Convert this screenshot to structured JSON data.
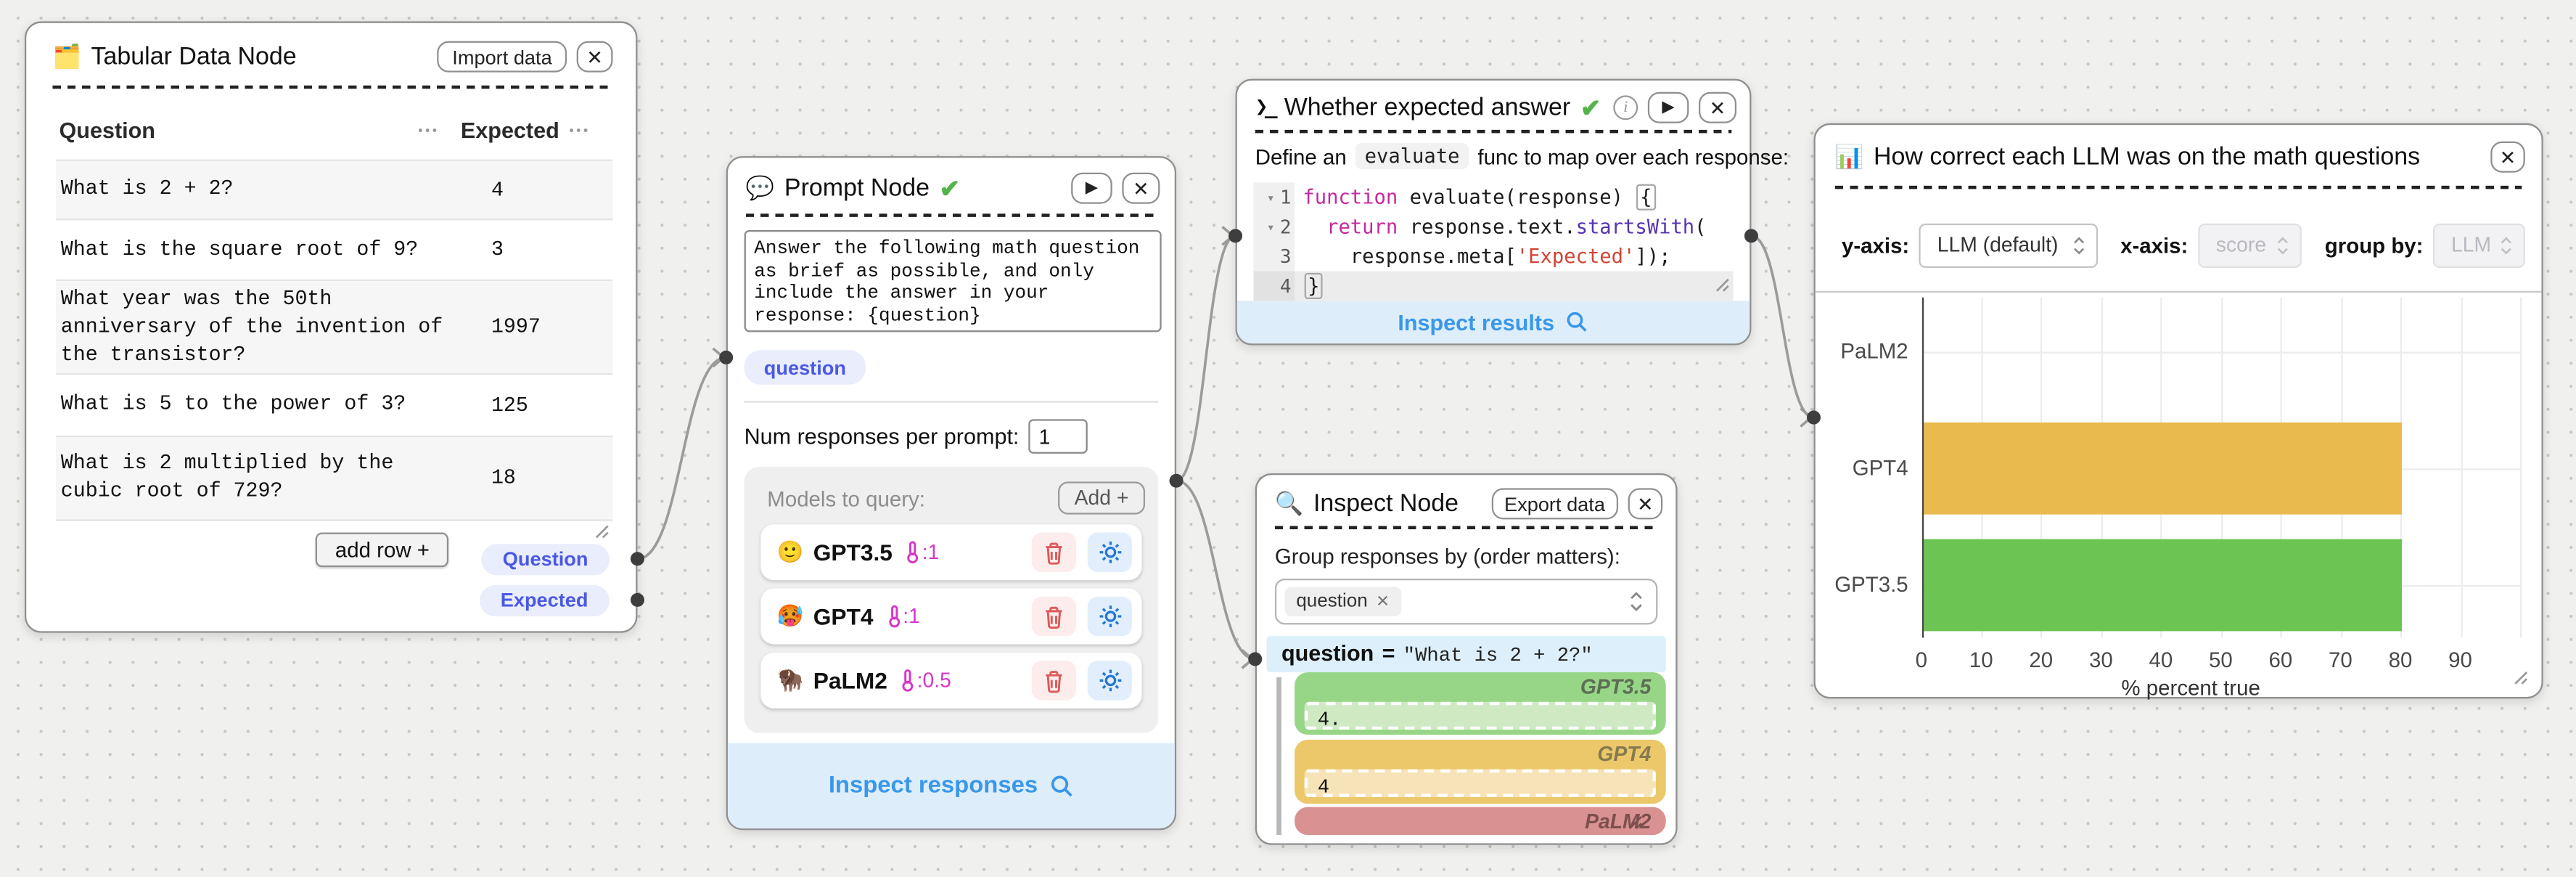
{
  "tabular_node": {
    "icon": "🗂️",
    "title": "Tabular Data Node",
    "import_button": "Import data",
    "close_button": "✕",
    "columns": [
      "Question",
      "Expected"
    ],
    "column_menu": "•••",
    "rows": [
      {
        "question": "What is 2 + 2?",
        "expected": "4"
      },
      {
        "question": "What is the square root of 9?",
        "expected": "3"
      },
      {
        "question": "What year was the 50th anniversary of the invention of the transistor?",
        "expected": "1997"
      },
      {
        "question": "What is 5 to the power of 3?",
        "expected": "125"
      },
      {
        "question": "What is 2 multiplied by the cubic root of 729?",
        "expected": "18"
      }
    ],
    "add_row_button": "add row +",
    "output_handles": {
      "question": "Question",
      "expected": "Expected"
    }
  },
  "prompt_node": {
    "icon": "💬",
    "title": "Prompt Node",
    "status_check": "✔",
    "play_button": "▶",
    "close_button": "✕",
    "prompt_text": "Answer the following math question as brief as possible, and only include the answer in your response: {question}",
    "template_var": "question",
    "num_responses_label": "Num responses per prompt:",
    "num_responses_value": "1",
    "models_label": "Models to query:",
    "add_model_button": "Add +",
    "models": [
      {
        "emoji": "🙂",
        "name": "GPT3.5",
        "temp": ":1"
      },
      {
        "emoji": "🥵",
        "name": "GPT4",
        "temp": ":1"
      },
      {
        "emoji": "🦬",
        "name": "PaLM2",
        "temp": ":0.5"
      }
    ],
    "footer": "Inspect responses"
  },
  "eval_node": {
    "icon": "❯_",
    "title": "Whether expected answer",
    "status_check": "✔",
    "play_button": "▶",
    "close_button": "✕",
    "define_prefix": "Define an",
    "define_code": "evaluate",
    "define_suffix": "func to map over each response:",
    "line_numbers": [
      "1",
      "2",
      "3",
      "4"
    ],
    "code": {
      "l1_kw": "function",
      "l1_plain": " evaluate(response) ",
      "l1_brace": "{",
      "l2_kw": "  return",
      "l2_plain": " response.text.",
      "l2_fn": "startsWith",
      "l2_paren": "(",
      "l3_plain": "    response.meta[",
      "l3_str": "'Expected'",
      "l3_end": "]);",
      "l4_brace": "}"
    },
    "footer": "Inspect results"
  },
  "inspect_node": {
    "icon": "🔍",
    "title": "Inspect Node",
    "export_button": "Export data",
    "close_button": "✕",
    "group_label": "Group responses by (order matters):",
    "group_tag": "question",
    "group_header": {
      "key": "question",
      "eq": "=",
      "value": "\"What is 2 + 2?\""
    },
    "responses": [
      {
        "model": "GPT3.5",
        "text": "4.",
        "bg": "#98d687",
        "inner": "#cfeac3",
        "label_color": "#5c6e54"
      },
      {
        "model": "GPT4",
        "text": "4",
        "bg": "#ecc86a",
        "inner": "#f6e4b8",
        "label_color": "#857a4e"
      },
      {
        "model": "PaLM2",
        "text": "",
        "bg": "#d99191",
        "inner": "#ecc3c3",
        "label_color": "#7d4f4f"
      }
    ]
  },
  "vis_node": {
    "icon": "📊",
    "title": "How correct each LLM was on the math questions",
    "close_button": "✕",
    "controls": [
      {
        "label": "y-axis:",
        "value": "LLM (default)",
        "disabled": false
      },
      {
        "label": "x-axis:",
        "value": "score",
        "disabled": true
      },
      {
        "label": "group by:",
        "value": "LLM",
        "disabled": true
      }
    ]
  },
  "chart_data": {
    "type": "bar",
    "orientation": "horizontal",
    "title": "How correct each LLM was on the math questions",
    "categories": [
      "PaLM2",
      "GPT4",
      "GPT3.5"
    ],
    "values": [
      0,
      80,
      80
    ],
    "colors": [
      "#d99191",
      "#e9ba4e",
      "#6cc453"
    ],
    "xlabel": "% percent true",
    "xlim": [
      0,
      100
    ],
    "xticks": [
      0,
      10,
      20,
      30,
      40,
      50,
      60,
      70,
      80,
      90
    ],
    "grid": true,
    "legend": false
  }
}
